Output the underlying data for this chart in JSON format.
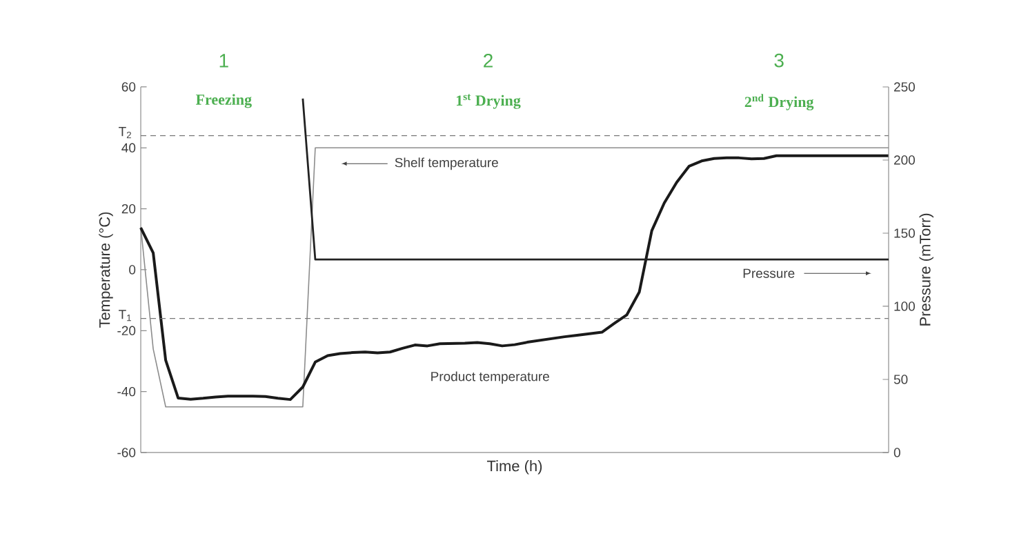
{
  "chart_data": {
    "type": "line",
    "xlabel": "Time (h)",
    "ylabel": "Temperature (°C)",
    "y2label": "Pressure (mTorr)",
    "categories": [
      null,
      null,
      null,
      null,
      null,
      null,
      null,
      null,
      null,
      null,
      null,
      null,
      null,
      null,
      null,
      null,
      null,
      null,
      null,
      null,
      null,
      null,
      null,
      null,
      null,
      null,
      null,
      null,
      null,
      null,
      null,
      null,
      null,
      null,
      null,
      null,
      null,
      null,
      null,
      null,
      null,
      null,
      null,
      null,
      null,
      null,
      null,
      null,
      null,
      null,
      null,
      null,
      null,
      null,
      null,
      null,
      null,
      null,
      null,
      null,
      null
    ],
    "ylim": [
      -60,
      60
    ],
    "yticks": [
      -60,
      -40,
      -20,
      0,
      20,
      40,
      60
    ],
    "y2lim": [
      0,
      250
    ],
    "y2ticks": [
      0,
      50,
      100,
      150,
      200,
      250
    ],
    "grid": false,
    "legend": false,
    "marker": "none",
    "line_style": "solid",
    "series": [
      {
        "name": "Shelf temperature",
        "color": "#8c8c8c",
        "values": [
          14,
          -26,
          -45,
          -45,
          -45,
          -45,
          -45,
          -45,
          -45,
          -45,
          -45,
          -45,
          -45,
          -45,
          40,
          40,
          40,
          40,
          40,
          40,
          40,
          40,
          40,
          40,
          40,
          40,
          40,
          40,
          40,
          40,
          40,
          40,
          40,
          40,
          40,
          40,
          40,
          40,
          40,
          40,
          40,
          40,
          40,
          40,
          40,
          40,
          40,
          40,
          40,
          40,
          40,
          40,
          40,
          40,
          40,
          40,
          40,
          40,
          40,
          40,
          40
        ]
      },
      {
        "name": "Product temperature",
        "color": "#1a1a1a",
        "values": [
          13.8,
          5.5,
          -29.7,
          -42.1,
          -42.5,
          -42.2,
          -41.8,
          -41.5,
          -41.5,
          -41.5,
          -41.6,
          -42.2,
          -42.6,
          -38.5,
          -30.3,
          -28.2,
          -27.5,
          -27.2,
          -27,
          -27.3,
          -27,
          -25.8,
          -24.7,
          -25,
          -24.3,
          -24.2,
          -24.1,
          -23.9,
          -24.3,
          -25,
          -24.6,
          -23.8,
          -23.2,
          -22.6,
          -22,
          -21.5,
          -21,
          -20.5,
          -17.6,
          -14.8,
          -7.3,
          12.8,
          21.9,
          28.7,
          34,
          35.7,
          36.5,
          36.7,
          36.7,
          36.4,
          36.5,
          37.4,
          37.4,
          37.4,
          37.4,
          37.4,
          37.4,
          37.4,
          37.4,
          37.4,
          37.4
        ]
      },
      {
        "name": "Pressure",
        "color": "#222222",
        "axis": "y2",
        "values": [
          null,
          null,
          null,
          null,
          null,
          null,
          null,
          null,
          null,
          null,
          null,
          null,
          null,
          242,
          132,
          132,
          132,
          132,
          132,
          132,
          132,
          132,
          132,
          132,
          132,
          132,
          132,
          132,
          132,
          132,
          132,
          132,
          132,
          132,
          132,
          132,
          132,
          132,
          132,
          132,
          132,
          132,
          132,
          132,
          132,
          132,
          132,
          132,
          132,
          132,
          132,
          132,
          132,
          132,
          132,
          132,
          132,
          132,
          132,
          132,
          132
        ]
      }
    ],
    "ref_lines": [
      {
        "axis": "y",
        "value": 44,
        "label": "T$_{2}$",
        "color": "#777777",
        "line_style": "dashed"
      },
      {
        "axis": "y",
        "value": -16,
        "label": "T$_{1}$",
        "color": "#777777",
        "line_style": "dashed"
      }
    ],
    "annotations": [
      "1",
      "Freezing",
      "2",
      "1$^{st}$ Drying",
      "3",
      "2$^{nd}$ Drying"
    ]
  }
}
